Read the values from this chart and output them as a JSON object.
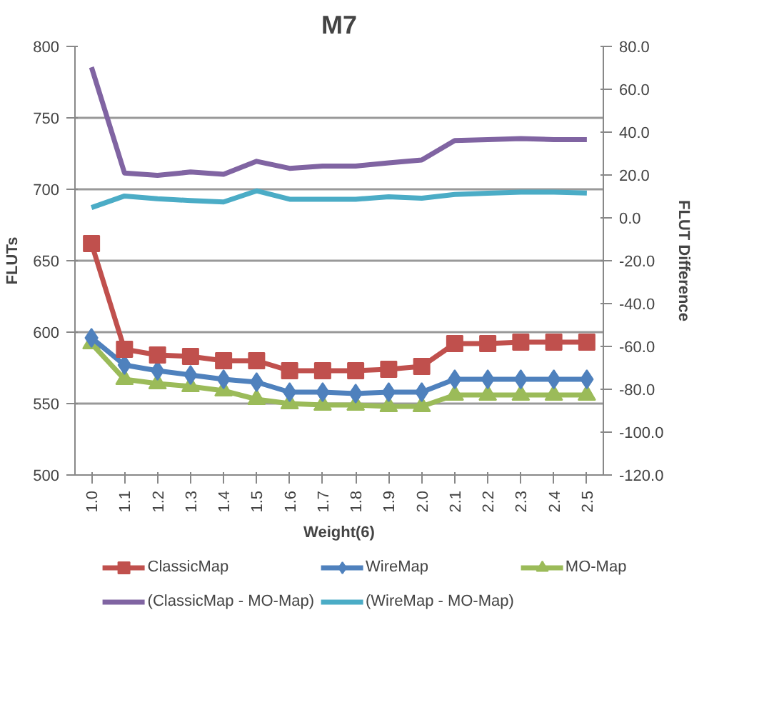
{
  "chart_data": {
    "type": "line",
    "title": "M7",
    "xlabel": "Weight(6)",
    "ylabel": "FLUTs",
    "y2label": "FLUT Difference",
    "categories": [
      "1.0",
      "1.1",
      "1.2",
      "1.3",
      "1.4",
      "1.5",
      "1.6",
      "1.7",
      "1.8",
      "1.9",
      "2.0",
      "2.1",
      "2.2",
      "2.3",
      "2.4",
      "2.5"
    ],
    "series": [
      {
        "name": "ClassicMap",
        "color": "#c0504d",
        "marker": "square",
        "values": [
          662,
          588,
          584,
          583,
          580,
          580,
          573,
          573,
          573,
          574,
          576,
          592,
          592,
          593,
          593,
          593
        ]
      },
      {
        "name": "WireMap",
        "color": "#4f81bd",
        "marker": "diamond",
        "values": [
          596,
          577,
          573,
          570,
          567,
          565,
          558,
          558,
          557,
          558,
          558,
          567,
          567,
          567,
          567,
          567
        ]
      },
      {
        "name": "MO-Map",
        "color": "#9bbb59",
        "marker": "triangle",
        "values": [
          592,
          567,
          564,
          562,
          559,
          553,
          550,
          549,
          549,
          548,
          548,
          556,
          556,
          556,
          556,
          556
        ]
      },
      {
        "name": "(ClassicMap - MO-Map)",
        "color": "#8064a2",
        "marker": "none",
        "axis": "y2",
        "values": [
          70.3,
          20.9,
          19.8,
          21.4,
          20.3,
          26.4,
          23.1,
          24.2,
          24.2,
          25.7,
          27,
          36.1,
          36.5,
          37,
          36.5,
          36.5
        ]
      },
      {
        "name": "(WireMap - MO-Map)",
        "color": "#4bacc6",
        "marker": "none",
        "axis": "y2",
        "values": [
          4.8,
          10.2,
          8.9,
          8.1,
          7.4,
          12.6,
          8.7,
          8.7,
          8.7,
          9.8,
          9.2,
          10.9,
          11.5,
          12,
          12,
          11.6
        ]
      }
    ],
    "ylim": [
      500,
      800
    ],
    "yticks": [
      500,
      550,
      600,
      650,
      700,
      750,
      800
    ],
    "y2lim": [
      -120,
      80
    ],
    "y2ticks": [
      {
        "value": -120,
        "label": "-120.0"
      },
      {
        "value": -100,
        "label": "-100.0"
      },
      {
        "value": -80,
        "label": "-80.0"
      },
      {
        "value": -60,
        "label": "-60.0"
      },
      {
        "value": -40,
        "label": "-40.0"
      },
      {
        "value": -20,
        "label": "-20.0"
      },
      {
        "value": 0,
        "label": "0.0"
      },
      {
        "value": 20,
        "label": "20.0"
      },
      {
        "value": 40,
        "label": "40.0"
      },
      {
        "value": 60,
        "label": "60.0"
      },
      {
        "value": 80,
        "label": "80.0"
      }
    ],
    "grid": "y",
    "legend": "bottom",
    "line_style": "solid"
  }
}
